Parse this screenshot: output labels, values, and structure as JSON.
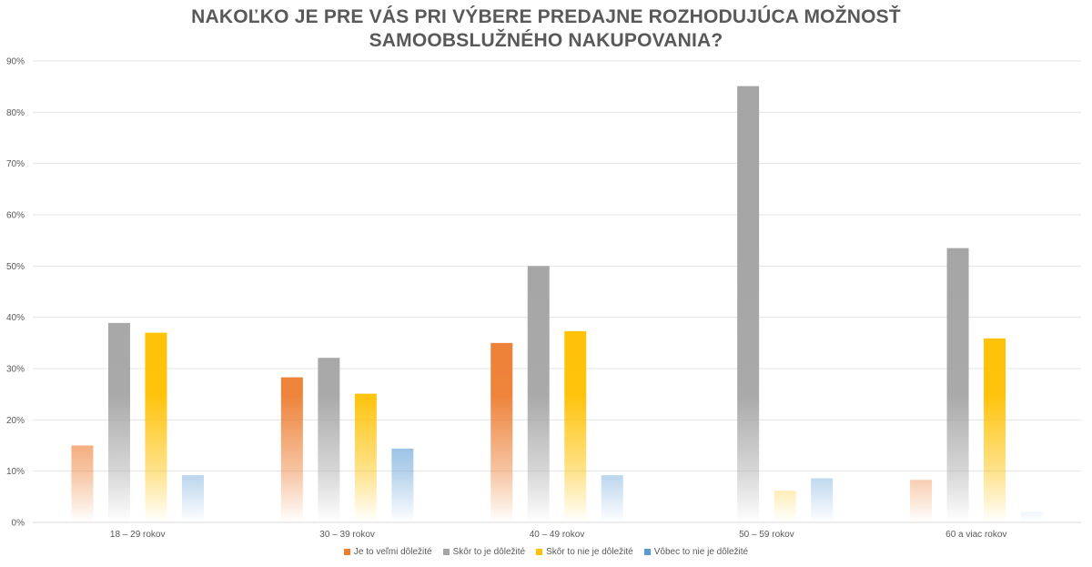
{
  "chart_data": {
    "type": "bar",
    "title_lines": [
      "NAKOĽKO JE PRE VÁS PRI VÝBERE PREDAJNE ROZHODUJÚCA MOŽNOSŤ",
      "SAMOOBSLUŽNÉHO NAKUPOVANIA?"
    ],
    "categories": [
      "18 – 29 rokov",
      "30 – 39 rokov",
      "40 – 49 rokov",
      "50 – 59 rokov",
      "60 a viac rokov"
    ],
    "series": [
      {
        "name": "Je to veľmi dôležité",
        "color": "#ED7D31",
        "values": [
          15,
          28.3,
          35,
          0,
          8.3
        ]
      },
      {
        "name": "Skôr to je dôležité",
        "color": "#A5A5A5",
        "values": [
          38.9,
          32.1,
          50,
          85.1,
          53.5
        ]
      },
      {
        "name": "Skôr to nie je dôležité",
        "color": "#FFC000",
        "values": [
          37,
          25.1,
          37.3,
          6.2,
          35.9
        ]
      },
      {
        "name": "Vôbec to nie je dôležité",
        "color": "#5B9BD5",
        "values": [
          9.2,
          14.4,
          9.2,
          8.6,
          2.1
        ]
      }
    ],
    "yticks": [
      "0%",
      "10%",
      "20%",
      "30%",
      "40%",
      "50%",
      "60%",
      "70%",
      "80%",
      "90%"
    ],
    "ylim": [
      0,
      90
    ],
    "grid": true,
    "legend": "bottom-center",
    "bar_fill": "vertical gradient fading to white toward the baseline"
  }
}
